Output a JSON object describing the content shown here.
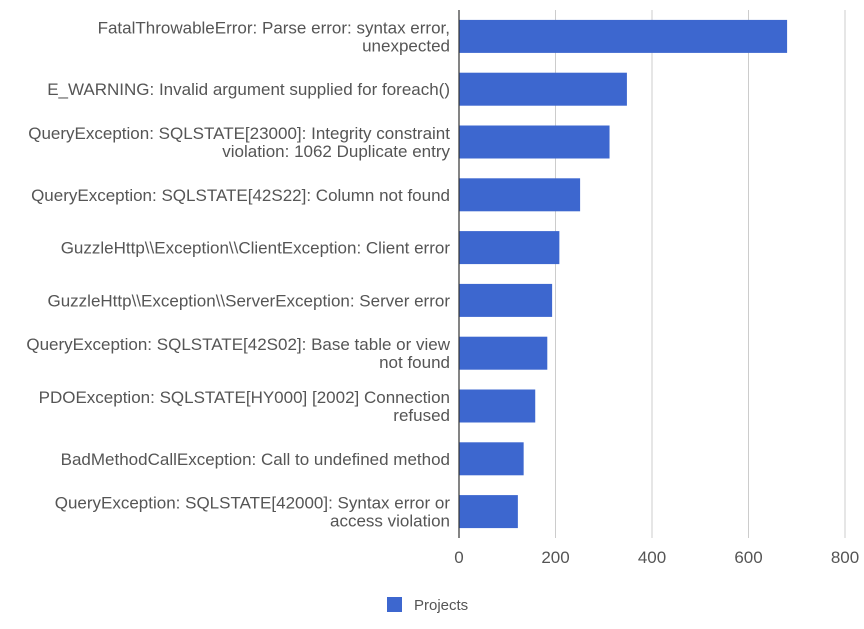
{
  "chart_data": {
    "type": "bar",
    "orientation": "horizontal",
    "categories": [
      [
        "FatalThrowableError: Parse error: syntax error,",
        "unexpected"
      ],
      [
        "E_WARNING: Invalid argument supplied for foreach()"
      ],
      [
        "QueryException: SQLSTATE[23000]: Integrity constraint",
        "violation: 1062 Duplicate entry"
      ],
      [
        "QueryException: SQLSTATE[42S22]: Column not found"
      ],
      [
        "GuzzleHttp\\\\Exception\\\\ClientException: Client error"
      ],
      [
        "GuzzleHttp\\\\Exception\\\\ServerException: Server error"
      ],
      [
        "QueryException: SQLSTATE[42S02]: Base table or view",
        "not found"
      ],
      [
        "PDOException: SQLSTATE[HY000] [2002] Connection",
        "refused"
      ],
      [
        "BadMethodCallException: Call to undefined method"
      ],
      [
        "QueryException: SQLSTATE[42000]: Syntax error or",
        "access violation"
      ]
    ],
    "series": [
      {
        "name": "Projects",
        "color": "#3d67cf",
        "values": [
          680,
          348,
          312,
          251,
          208,
          193,
          183,
          158,
          134,
          122
        ]
      }
    ],
    "xlim": [
      0,
      800
    ],
    "xticks": [
      0,
      200,
      400,
      600,
      800
    ],
    "grid": true,
    "legend": "bottom"
  }
}
